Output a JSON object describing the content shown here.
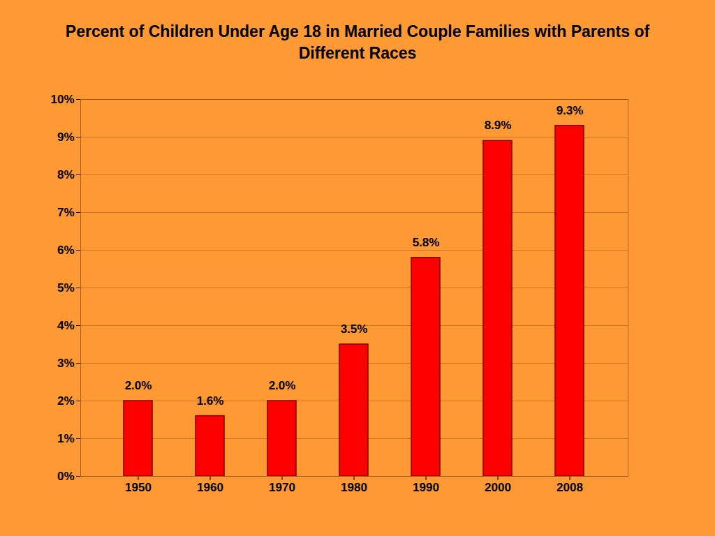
{
  "chart_data": {
    "type": "bar",
    "title": "Percent of Children Under Age 18 in Married Couple Families with Parents of Different Races",
    "categories": [
      "1950",
      "1960",
      "1970",
      "1980",
      "1990",
      "2000",
      "2008"
    ],
    "values": [
      2.0,
      1.6,
      2.0,
      3.5,
      5.8,
      8.9,
      9.3
    ],
    "value_labels": [
      "2.0%",
      "1.6%",
      "2.0%",
      "3.5%",
      "5.8%",
      "8.9%",
      "9.3%"
    ],
    "color": "#FF0000",
    "ylim": [
      0,
      10
    ],
    "yticks": [
      {
        "value": 0,
        "label": "0%"
      },
      {
        "value": 1,
        "label": "1%"
      },
      {
        "value": 2,
        "label": "2%"
      },
      {
        "value": 3,
        "label": "3%"
      },
      {
        "value": 4,
        "label": "4%"
      },
      {
        "value": 5,
        "label": "5%"
      },
      {
        "value": 6,
        "label": "6%"
      },
      {
        "value": 7,
        "label": "7%"
      },
      {
        "value": 8,
        "label": "8%"
      },
      {
        "value": 9,
        "label": "9%"
      },
      {
        "value": 10,
        "label": "10%"
      }
    ],
    "grid": true,
    "data_labels": true
  }
}
